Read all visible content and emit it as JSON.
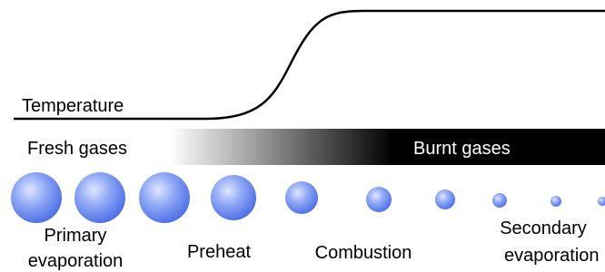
{
  "curve": {
    "label": "Temperature"
  },
  "band": {
    "left_label": "Fresh gases",
    "right_label": "Burnt gases"
  },
  "stages": [
    {
      "label_lines": [
        "Primary",
        "evaporation"
      ]
    },
    {
      "label_lines": [
        "Preheat"
      ]
    },
    {
      "label_lines": [
        "Combustion"
      ]
    },
    {
      "label_lines": [
        "Secondary",
        "evaporation"
      ]
    }
  ]
}
